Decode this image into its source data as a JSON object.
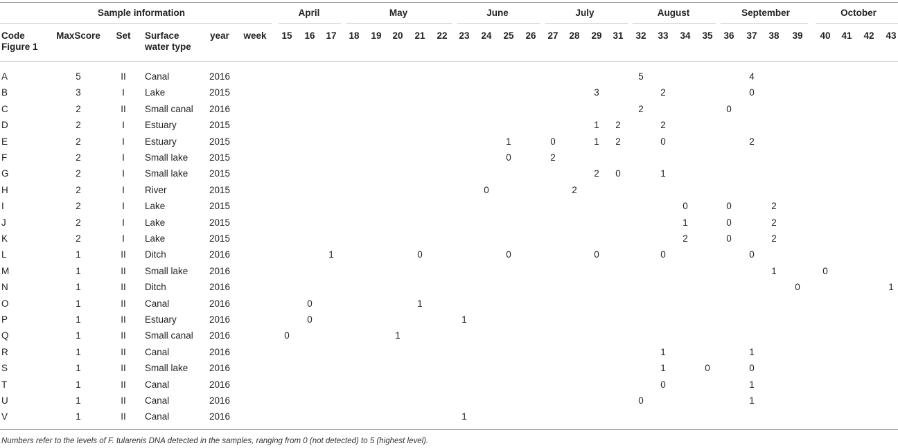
{
  "table": {
    "group_headers": [
      "Sample information",
      "April",
      "May",
      "June",
      "July",
      "August",
      "September",
      "October"
    ],
    "columns": [
      "Code Figure 1",
      "MaxScore",
      "Set",
      "Surface water type",
      "year",
      "week",
      "15",
      "16",
      "17",
      "18",
      "19",
      "20",
      "21",
      "22",
      "23",
      "24",
      "25",
      "26",
      "27",
      "28",
      "29",
      "31",
      "32",
      "33",
      "34",
      "35",
      "36",
      "37",
      "38",
      "39",
      "40",
      "41",
      "42",
      "43"
    ],
    "rows": [
      {
        "code": "A",
        "maxscore": "5",
        "set": "II",
        "type": "Canal",
        "year": "2016",
        "weeks": {
          "32": "5",
          "37": "4"
        }
      },
      {
        "code": "B",
        "maxscore": "3",
        "set": "I",
        "type": "Lake",
        "year": "2015",
        "weeks": {
          "29": "3",
          "33": "2",
          "37": "0"
        }
      },
      {
        "code": "C",
        "maxscore": "2",
        "set": "II",
        "type": "Small canal",
        "year": "2016",
        "weeks": {
          "32": "2",
          "36": "0"
        }
      },
      {
        "code": "D",
        "maxscore": "2",
        "set": "I",
        "type": "Estuary",
        "year": "2015",
        "weeks": {
          "29": "1",
          "31": "2",
          "33": "2"
        }
      },
      {
        "code": "E",
        "maxscore": "2",
        "set": "I",
        "type": "Estuary",
        "year": "2015",
        "weeks": {
          "25": "1",
          "27": "0",
          "29": "1",
          "31": "2",
          "33": "0",
          "37": "2"
        }
      },
      {
        "code": "F",
        "maxscore": "2",
        "set": "I",
        "type": "Small lake",
        "year": "2015",
        "weeks": {
          "25": "0",
          "27": "2"
        }
      },
      {
        "code": "G",
        "maxscore": "2",
        "set": "I",
        "type": "Small lake",
        "year": "2015",
        "weeks": {
          "29": "2",
          "31": "0",
          "33": "1"
        }
      },
      {
        "code": "H",
        "maxscore": "2",
        "set": "I",
        "type": "River",
        "year": "2015",
        "weeks": {
          "24": "0",
          "28": "2"
        }
      },
      {
        "code": "I",
        "maxscore": "2",
        "set": "I",
        "type": "Lake",
        "year": "2015",
        "weeks": {
          "34": "0",
          "36": "0",
          "38": "2"
        }
      },
      {
        "code": "J",
        "maxscore": "2",
        "set": "I",
        "type": "Lake",
        "year": "2015",
        "weeks": {
          "34": "1",
          "36": "0",
          "38": "2"
        }
      },
      {
        "code": "K",
        "maxscore": "2",
        "set": "I",
        "type": "Lake",
        "year": "2015",
        "weeks": {
          "34": "2",
          "36": "0",
          "38": "2"
        }
      },
      {
        "code": "L",
        "maxscore": "1",
        "set": "II",
        "type": "Ditch",
        "year": "2016",
        "weeks": {
          "17": "1",
          "21": "0",
          "25": "0",
          "29": "0",
          "33": "0",
          "37": "0"
        }
      },
      {
        "code": "M",
        "maxscore": "1",
        "set": "II",
        "type": "Small lake",
        "year": "2016",
        "weeks": {
          "38": "1",
          "40": "0"
        }
      },
      {
        "code": "N",
        "maxscore": "1",
        "set": "II",
        "type": "Ditch",
        "year": "2016",
        "weeks": {
          "39": "0",
          "43": "1"
        }
      },
      {
        "code": "O",
        "maxscore": "1",
        "set": "II",
        "type": "Canal",
        "year": "2016",
        "weeks": {
          "16": "0",
          "21": "1"
        }
      },
      {
        "code": "P",
        "maxscore": "1",
        "set": "II",
        "type": "Estuary",
        "year": "2016",
        "weeks": {
          "16": "0",
          "23": "1"
        }
      },
      {
        "code": "Q",
        "maxscore": "1",
        "set": "II",
        "type": "Small canal",
        "year": "2016",
        "weeks": {
          "15": "0",
          "20": "1"
        }
      },
      {
        "code": "R",
        "maxscore": "1",
        "set": "II",
        "type": "Canal",
        "year": "2016",
        "weeks": {
          "33": "1",
          "37": "1"
        }
      },
      {
        "code": "S",
        "maxscore": "1",
        "set": "II",
        "type": "Small lake",
        "year": "2016",
        "weeks": {
          "33": "1",
          "35": "0",
          "37": "0"
        }
      },
      {
        "code": "T",
        "maxscore": "1",
        "set": "II",
        "type": "Canal",
        "year": "2016",
        "weeks": {
          "33": "0",
          "37": "1"
        }
      },
      {
        "code": "U",
        "maxscore": "1",
        "set": "II",
        "type": "Canal",
        "year": "2016",
        "weeks": {
          "32": "0",
          "37": "1"
        }
      },
      {
        "code": "V",
        "maxscore": "1",
        "set": "II",
        "type": "Canal",
        "year": "2016",
        "weeks": {
          "23": "1"
        }
      }
    ],
    "footnote": "Numbers refer to the levels of F. tularenis DNA detected in the samples, ranging from 0 (not detected) to 5 (highest level)."
  }
}
